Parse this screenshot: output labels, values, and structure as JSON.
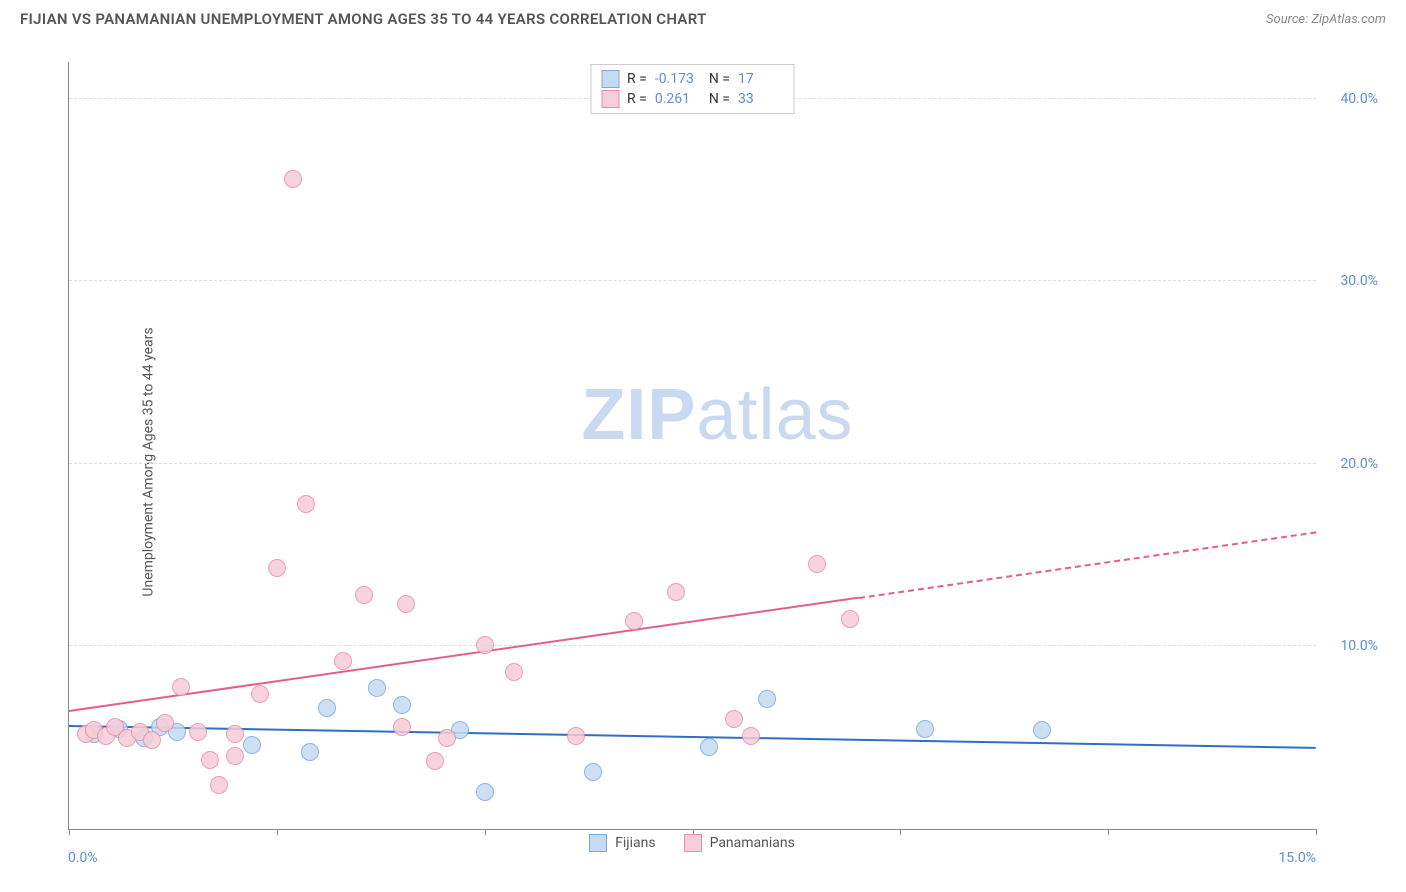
{
  "title": "FIJIAN VS PANAMANIAN UNEMPLOYMENT AMONG AGES 35 TO 44 YEARS CORRELATION CHART",
  "source": "Source: ZipAtlas.com",
  "y_axis_label": "Unemployment Among Ages 35 to 44 years",
  "watermark_bold": "ZIP",
  "watermark_rest": "atlas",
  "chart": {
    "type": "scatter",
    "xlim": [
      0,
      15
    ],
    "ylim": [
      0,
      42
    ],
    "x_ticks": [
      0,
      2.5,
      5,
      7.5,
      10,
      12.5,
      15
    ],
    "x_tick_labels_shown": {
      "0": "0.0%",
      "15": "15.0%"
    },
    "y_gridlines": [
      10,
      20,
      30,
      40
    ],
    "y_tick_labels": {
      "10": "10.0%",
      "20": "20.0%",
      "30": "30.0%",
      "40": "40.0%"
    },
    "background_color": "#ffffff",
    "grid_color": "#dddddd",
    "axis_color": "#888888",
    "label_color": "#5b8fd6",
    "marker_radius": 9,
    "marker_border_width": 1.5,
    "series": [
      {
        "name": "Fijians",
        "fill": "#c5dbf2",
        "stroke": "#7aa9e0",
        "trend_color": "#2f6fc4",
        "R": "-0.173",
        "N": "17",
        "trend": {
          "x1": 0,
          "y1": 5.6,
          "x2": 15,
          "y2": 4.4,
          "solid_to_x": 15
        },
        "points": [
          [
            0.3,
            5.2
          ],
          [
            0.6,
            5.5
          ],
          [
            0.9,
            5.0
          ],
          [
            1.1,
            5.6
          ],
          [
            1.3,
            5.3
          ],
          [
            2.2,
            4.6
          ],
          [
            2.9,
            4.2
          ],
          [
            3.1,
            6.6
          ],
          [
            3.7,
            7.7
          ],
          [
            4.0,
            6.8
          ],
          [
            4.7,
            5.4
          ],
          [
            5.0,
            2.0
          ],
          [
            6.3,
            3.1
          ],
          [
            7.7,
            4.5
          ],
          [
            8.4,
            7.1
          ],
          [
            10.3,
            5.5
          ],
          [
            11.7,
            5.4
          ]
        ]
      },
      {
        "name": "Panamanians",
        "fill": "#f6cdd8",
        "stroke": "#e98fa8",
        "trend_color": "#e06089",
        "R": "0.261",
        "N": "33",
        "trend": {
          "x1": 0,
          "y1": 6.4,
          "x2": 15,
          "y2": 16.2,
          "solid_to_x": 9.5
        },
        "points": [
          [
            0.2,
            5.2
          ],
          [
            0.3,
            5.4
          ],
          [
            0.45,
            5.1
          ],
          [
            0.55,
            5.6
          ],
          [
            0.7,
            5.0
          ],
          [
            0.85,
            5.3
          ],
          [
            1.0,
            4.9
          ],
          [
            1.15,
            5.8
          ],
          [
            1.35,
            7.8
          ],
          [
            1.55,
            5.3
          ],
          [
            1.7,
            3.8
          ],
          [
            1.8,
            2.4
          ],
          [
            2.0,
            5.2
          ],
          [
            2.0,
            4.0
          ],
          [
            2.3,
            7.4
          ],
          [
            2.5,
            14.3
          ],
          [
            2.7,
            35.6
          ],
          [
            2.85,
            17.8
          ],
          [
            3.3,
            9.2
          ],
          [
            3.55,
            12.8
          ],
          [
            4.05,
            12.3
          ],
          [
            4.0,
            5.6
          ],
          [
            4.4,
            3.7
          ],
          [
            4.55,
            5.0
          ],
          [
            5.0,
            10.1
          ],
          [
            5.35,
            8.6
          ],
          [
            6.1,
            5.1
          ],
          [
            6.8,
            11.4
          ],
          [
            7.3,
            13.0
          ],
          [
            8.2,
            5.1
          ],
          [
            9.0,
            14.5
          ],
          [
            9.4,
            11.5
          ],
          [
            8.0,
            6.0
          ]
        ]
      }
    ]
  },
  "legend_top": {
    "rows": [
      {
        "color_fill": "#c5dbf2",
        "color_stroke": "#7aa9e0",
        "r_label": "R =",
        "r_val": "-0.173",
        "n_label": "N =",
        "n_val": "17"
      },
      {
        "color_fill": "#f6cdd8",
        "color_stroke": "#e98fa8",
        "r_label": "R =",
        "r_val": "0.261",
        "n_label": "N =",
        "n_val": "33"
      }
    ]
  },
  "legend_bottom": [
    {
      "fill": "#c5dbf2",
      "stroke": "#7aa9e0",
      "label": "Fijians"
    },
    {
      "fill": "#f6cdd8",
      "stroke": "#e98fa8",
      "label": "Panamanians"
    }
  ]
}
